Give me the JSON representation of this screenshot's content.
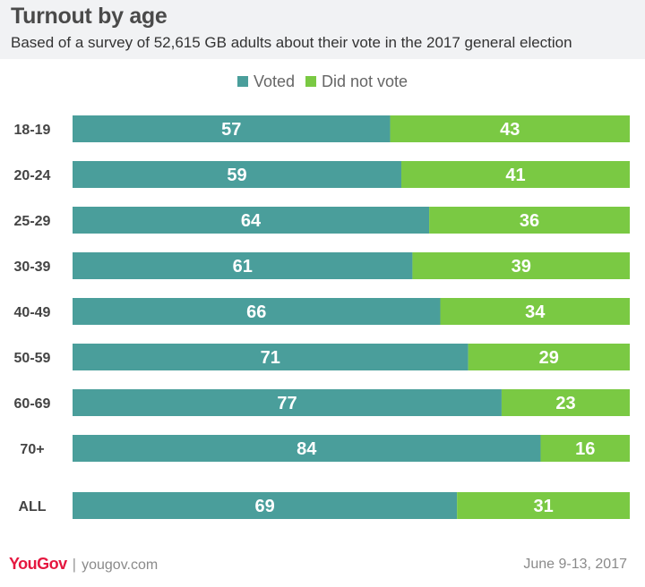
{
  "header": {
    "title": "Turnout by age",
    "subtitle": "Based of a survey of 52,615 GB adults about their vote in the 2017 general election"
  },
  "footer": {
    "brand": "YouGov",
    "separator": "|",
    "url": "yougov.com",
    "date": "June 9-13, 2017"
  },
  "colors": {
    "voted": "#4a9e9b",
    "did_not_vote": "#7ac943"
  },
  "chart_data": {
    "type": "bar",
    "orientation": "horizontal",
    "stacked": true,
    "categories": [
      "18-19",
      "20-24",
      "25-29",
      "30-39",
      "40-49",
      "50-59",
      "60-69",
      "70+",
      "ALL"
    ],
    "series": [
      {
        "name": "Voted",
        "values": [
          57,
          59,
          64,
          61,
          66,
          71,
          77,
          84,
          69
        ]
      },
      {
        "name": "Did not vote",
        "values": [
          43,
          41,
          36,
          39,
          34,
          29,
          23,
          16,
          31
        ]
      }
    ],
    "xlim": [
      0,
      100
    ],
    "grid": false,
    "legend_position": "top-center"
  }
}
